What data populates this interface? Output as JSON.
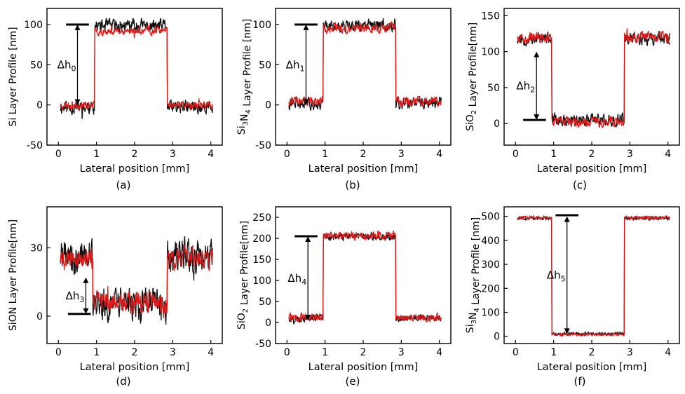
{
  "chart_data": [
    {
      "panel": "(a)",
      "type": "line",
      "xlabel": "Lateral position [mm]",
      "ylabel": "Si Layer Profile [nm]",
      "ylabel_sub": "",
      "ylabel_after": "",
      "ylim": [
        -50,
        120
      ],
      "xlim": [
        -0.3,
        4.3
      ],
      "xticks": [
        0,
        1,
        2,
        3,
        4
      ],
      "yticks": [
        -50,
        0,
        50,
        100
      ],
      "step": {
        "x1": 0.95,
        "x2": 2.85
      },
      "series": [
        {
          "name": "black",
          "color": "#111111",
          "base": -3,
          "top": 98,
          "noise": 7,
          "seed": 11
        },
        {
          "name": "red",
          "color": "#dd1a1a",
          "base": 0,
          "top": 92,
          "noise": 4,
          "seed": 23
        }
      ],
      "annotation": {
        "label": "Δh",
        "sub": "0",
        "arrow_x": 0.5,
        "y_top": 100,
        "y_bottom": 0,
        "bar_x": [
          0.2,
          0.8
        ],
        "bar_y": 100,
        "bar_at": "top"
      }
    },
    {
      "panel": "(b)",
      "type": "line",
      "xlabel": "Lateral position [mm]",
      "ylabel": "Si",
      "ylabel_sub": "3",
      "ylabel_after": "N",
      "ylabel_sub2": "4",
      "ylabel_tail": " Layer Profile [nm]",
      "ylim": [
        -50,
        120
      ],
      "xlim": [
        -0.3,
        4.3
      ],
      "xticks": [
        0,
        1,
        2,
        3,
        4
      ],
      "yticks": [
        -50,
        0,
        50,
        100
      ],
      "step": {
        "x1": 0.95,
        "x2": 2.85
      },
      "series": [
        {
          "name": "black",
          "color": "#111111",
          "base": 2,
          "top": 99,
          "noise": 6,
          "seed": 31
        },
        {
          "name": "red",
          "color": "#dd1a1a",
          "base": 5,
          "top": 96,
          "noise": 5,
          "seed": 47
        }
      ],
      "annotation": {
        "label": "Δh",
        "sub": "1",
        "arrow_x": 0.5,
        "y_top": 100,
        "y_bottom": 0,
        "bar_x": [
          0.2,
          0.8
        ],
        "bar_y": 100,
        "bar_at": "top"
      }
    },
    {
      "panel": "(c)",
      "type": "line",
      "xlabel": "Lateral position [mm]",
      "ylabel": "SiO",
      "ylabel_sub": "2",
      "ylabel_after": "",
      "ylabel_sub2": "",
      "ylabel_tail": " Layer Profile[nm]",
      "ylim": [
        -30,
        160
      ],
      "xlim": [
        -0.3,
        4.3
      ],
      "xticks": [
        0,
        1,
        2,
        3,
        4
      ],
      "yticks": [
        0,
        50,
        100,
        150
      ],
      "step": {
        "x1": 0.95,
        "x2": 2.85,
        "inverted": true
      },
      "series": [
        {
          "name": "black",
          "color": "#111111",
          "base": 118,
          "top": 5,
          "noise": 7,
          "seed": 53
        },
        {
          "name": "red",
          "color": "#dd1a1a",
          "base": 120,
          "top": 3,
          "noise": 6,
          "seed": 67
        }
      ],
      "annotation": {
        "label": "Δh",
        "sub": "2",
        "arrow_x": 0.55,
        "y_top": 100,
        "y_bottom": 5,
        "bar_x": [
          0.2,
          0.8
        ],
        "bar_y": 5,
        "bar_at": "bottom"
      }
    },
    {
      "panel": "(d)",
      "type": "line",
      "xlabel": "Lateral position [mm]",
      "ylabel": "SiON Layer Profile[nm]",
      "ylabel_sub": "",
      "ylabel_after": "",
      "ylim": [
        -12,
        48
      ],
      "xlim": [
        -0.3,
        4.3
      ],
      "xticks": [
        0,
        1,
        2,
        3,
        4
      ],
      "yticks": [
        0,
        30
      ],
      "step": {
        "x1": 0.9,
        "x2": 2.85,
        "inverted": true
      },
      "series": [
        {
          "name": "black",
          "color": "#111111",
          "base": 26,
          "top": 5,
          "noise": 6,
          "seed": 71
        },
        {
          "name": "red",
          "color": "#dd1a1a",
          "base": 25,
          "top": 6,
          "noise": 4,
          "seed": 89
        }
      ],
      "annotation": {
        "label": "Δh",
        "sub": "3",
        "arrow_x": 0.72,
        "y_top": 17,
        "y_bottom": 1,
        "bar_x": [
          0.25,
          0.85
        ],
        "bar_y": 1,
        "bar_at": "bottom"
      }
    },
    {
      "panel": "(e)",
      "type": "line",
      "xlabel": "Lateral position [mm]",
      "ylabel": "SiO",
      "ylabel_sub": "2",
      "ylabel_after": "",
      "ylabel_sub2": "",
      "ylabel_tail": " Layer Profile[nm]",
      "ylim": [
        -50,
        275
      ],
      "xlim": [
        -0.3,
        4.3
      ],
      "xticks": [
        0,
        1,
        2,
        3,
        4
      ],
      "yticks": [
        -50,
        0,
        50,
        100,
        150,
        200,
        250
      ],
      "step": {
        "x1": 0.95,
        "x2": 2.85
      },
      "series": [
        {
          "name": "black",
          "color": "#111111",
          "base": 10,
          "top": 203,
          "noise": 6,
          "seed": 97
        },
        {
          "name": "red",
          "color": "#dd1a1a",
          "base": 12,
          "top": 207,
          "noise": 8,
          "seed": 101
        }
      ],
      "annotation": {
        "label": "Δh",
        "sub": "4",
        "arrow_x": 0.55,
        "y_top": 205,
        "y_bottom": 5,
        "bar_x": [
          0.2,
          0.8
        ],
        "bar_y": 205,
        "bar_at": "top"
      }
    },
    {
      "panel": "(f)",
      "type": "line",
      "xlabel": "Lateral position [mm]",
      "ylabel": "Si",
      "ylabel_sub": "3",
      "ylabel_after": "N",
      "ylabel_sub2": "4",
      "ylabel_tail": " Layer Profile [nm]",
      "ylim": [
        -30,
        540
      ],
      "xlim": [
        -0.3,
        4.3
      ],
      "xticks": [
        0,
        1,
        2,
        3,
        4
      ],
      "yticks": [
        0,
        100,
        200,
        300,
        400,
        500
      ],
      "step": {
        "x1": 0.95,
        "x2": 2.85,
        "inverted": true
      },
      "series": [
        {
          "name": "black",
          "color": "#111111",
          "base": 492,
          "top": 10,
          "noise": 5,
          "seed": 107
        },
        {
          "name": "red",
          "color": "#dd1a1a",
          "base": 495,
          "top": 8,
          "noise": 5,
          "seed": 113
        }
      ],
      "annotation": {
        "label": "Δh",
        "sub": "5",
        "arrow_x": 1.35,
        "y_top": 500,
        "y_bottom": 10,
        "bar_x": [
          1.05,
          1.65
        ],
        "bar_y": 505,
        "bar_at": "top"
      }
    }
  ]
}
